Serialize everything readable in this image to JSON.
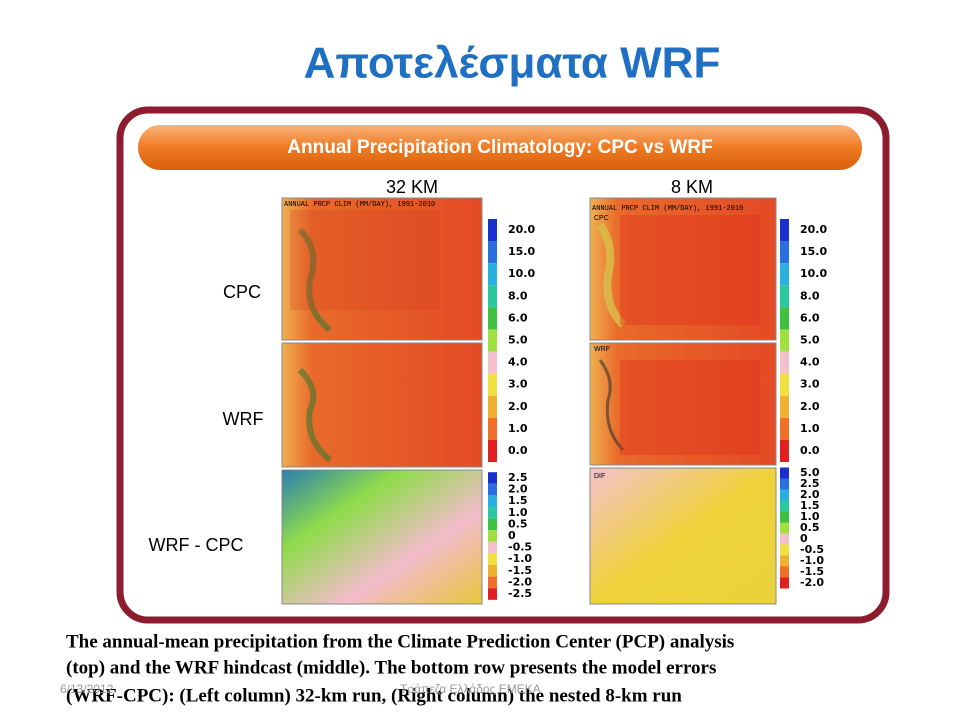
{
  "header": {
    "title": "Αποτελέσματα WRF"
  },
  "banner": "Annual Precipitation Climatology: CPC vs WRF",
  "columns": [
    "32 KM",
    "8 KM"
  ],
  "rows": [
    "CPC",
    "WRF",
    "WRF - CPC"
  ],
  "map_title": "ANNUAL PRCP CLIM (MM/DAY), 1991-2010",
  "map_tags": [
    "CPC",
    "WRF",
    "DIF"
  ],
  "colorbars": {
    "clim": [
      "20.0",
      "15.0",
      "10.0",
      "8.0",
      "6.0",
      "5.0",
      "4.0",
      "3.0",
      "2.0",
      "1.0",
      "0.0"
    ],
    "diff_32km": [
      "2.5",
      "2.0",
      "1.5",
      "1.0",
      "0.5",
      "0",
      "-0.5",
      "-1.0",
      "-1.5",
      "-2.0",
      "-2.5"
    ],
    "diff_8km": [
      "5.0",
      "2.5",
      "2.0",
      "1.5",
      "1.0",
      "0.5",
      "0",
      "-0.5",
      "-1.0",
      "-1.5",
      "-2.0"
    ]
  },
  "caption": [
    "The annual-mean precipitation from the Climate Prediction Center (PCP) analysis",
    "(top) and the WRF hindcast (middle). The bottom row presents the model errors",
    "(WRF-CPC): (Left column) 32-km run, (Right column) the nested 8-km run"
  ],
  "footer": {
    "date": "6/13/2012",
    "org": "Τράπεζα Ελλάδος ΕΜΕΚΑ"
  }
}
